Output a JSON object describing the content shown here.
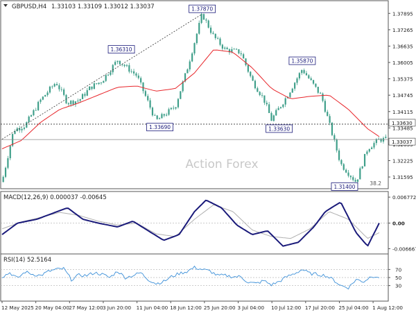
{
  "header": {
    "symbol": "GBPUSD,H4",
    "ohlc": "1.33103 1.33109 1.33012 1.33037"
  },
  "watermark": "Action Forex",
  "colors": {
    "candle": "#3f9f8a",
    "ema": "#e8262b",
    "macd": "#1a1a7a",
    "signal": "#b0b0b0",
    "rsi": "#3b8fd8",
    "label_border": "#1a1a7a",
    "hline": "#555555",
    "grid": "#bbbbbb"
  },
  "chart_data": [
    {
      "type": "candlestick",
      "title": "GBPUSD,H4",
      "ylim": [
        1.3125,
        1.3825
      ],
      "y_ticks": [
        "1.37895",
        "1.37265",
        "1.36635",
        "1.36005",
        "1.35375",
        "1.34745",
        "1.34115",
        "1.33485",
        "1.32855",
        "1.32225",
        "1.31595"
      ],
      "x_ticks": [
        "12 May 2025",
        "20 May 04:00",
        "27 May 12:00",
        "3 Jun 20:00",
        "11 Jun 04:00",
        "18 Jun 12:00",
        "25 Jun 20:00",
        "3 Jul 04:00",
        "10 Jul 12:00",
        "17 Jul 20:00",
        "25 Jul 04:00",
        "1 Aug 12:00"
      ],
      "grid": false,
      "price_path": {
        "x": [
          0,
          3,
          6,
          10,
          14,
          17,
          20,
          23,
          26,
          30,
          35,
          40,
          45,
          48,
          52,
          55,
          58,
          62,
          65,
          68,
          70,
          74,
          78,
          83,
          88,
          92,
          95,
          98
        ],
        "y": [
          1.314,
          1.334,
          1.3358,
          1.3455,
          1.3525,
          1.3445,
          1.3455,
          1.3505,
          1.353,
          1.361,
          1.355,
          1.3375,
          1.343,
          1.357,
          1.3787,
          1.37,
          1.365,
          1.364,
          1.353,
          1.346,
          1.338,
          1.347,
          1.3575,
          1.347,
          1.321,
          1.314,
          1.327,
          1.3304
        ]
      },
      "ema_path": {
        "x": [
          0,
          5,
          10,
          15,
          20,
          25,
          30,
          35,
          40,
          45,
          50,
          55,
          60,
          65,
          70,
          75,
          80,
          85,
          90,
          95,
          98
        ],
        "y": [
          1.3268,
          1.33,
          1.337,
          1.342,
          1.3445,
          1.3475,
          1.3505,
          1.351,
          1.349,
          1.35,
          1.356,
          1.365,
          1.364,
          1.358,
          1.35,
          1.346,
          1.347,
          1.3475,
          1.342,
          1.3345,
          1.3315
        ]
      },
      "trendline": {
        "x": [
          0,
          52
        ],
        "y": [
          1.3305,
          1.3787
        ]
      },
      "levels": [
        {
          "label": "1.33630",
          "value": 1.3363,
          "style": "dashed"
        },
        {
          "label": "1.33037",
          "value": 1.33037,
          "style": "solid"
        }
      ],
      "annotations": [
        {
          "label": "1.36310",
          "x": 31,
          "value": 1.3631,
          "pos": "above"
        },
        {
          "label": "1.33690",
          "x": 41,
          "value": 1.3369,
          "pos": "below"
        },
        {
          "label": "1.37870",
          "x": 52,
          "value": 1.3787,
          "pos": "above"
        },
        {
          "label": "1.33630",
          "x": 72,
          "value": 1.3363,
          "pos": "below"
        },
        {
          "label": "1.35870",
          "x": 78,
          "value": 1.3587,
          "pos": "above"
        },
        {
          "label": "1.31400",
          "x": 89,
          "value": 1.314,
          "pos": "below"
        }
      ],
      "fib_label": "38.2"
    },
    {
      "type": "line",
      "title": "MACD(12,26,9) 0.000037 -0.00645",
      "ylim": [
        -0.0075,
        0.0077
      ],
      "y_ticks": [
        "0.006772",
        "0.00",
        "-0.006667"
      ],
      "series": [
        {
          "x": [
            0,
            4,
            9,
            13,
            17,
            21,
            25,
            30,
            34,
            38,
            42,
            46,
            50,
            53,
            57,
            61,
            65,
            69,
            73,
            77,
            81,
            84,
            88,
            92,
            95,
            98
          ],
          "values": [
            -0.003,
            0.0,
            0.001,
            0.0025,
            0.004,
            0.001,
            0.0,
            -0.001,
            0.0005,
            -0.002,
            -0.0045,
            -0.003,
            0.003,
            0.006,
            0.004,
            -0.0005,
            -0.003,
            -0.002,
            -0.006,
            -0.005,
            -0.001,
            0.003,
            0.0055,
            -0.0025,
            -0.006,
            0.0
          ]
        },
        {
          "x": [
            0,
            5,
            10,
            15,
            20,
            25,
            30,
            35,
            40,
            45,
            50,
            55,
            60,
            65,
            70,
            75,
            80,
            85,
            90,
            95,
            98
          ],
          "values": [
            -0.0015,
            0.0003,
            0.0015,
            0.0028,
            0.002,
            0.0005,
            -0.0005,
            0.0,
            -0.0028,
            -0.0035,
            0.001,
            0.0048,
            0.003,
            -0.0018,
            -0.0035,
            -0.004,
            -0.0015,
            0.003,
            0.001,
            -0.004,
            -0.0025
          ]
        }
      ]
    },
    {
      "type": "line",
      "title": "RSI(14) 52.5164",
      "ylim": [
        0,
        100
      ],
      "y_ticks": [
        "70",
        "50",
        "30"
      ],
      "series": [
        {
          "x": [
            0,
            2,
            4,
            6,
            8,
            10,
            12,
            14,
            16,
            18,
            20,
            22,
            24,
            26,
            28,
            30,
            32,
            34,
            36,
            38,
            40,
            42,
            44,
            46,
            48,
            50,
            52,
            54,
            56,
            58,
            60,
            62,
            64,
            66,
            68,
            70,
            72,
            74,
            76,
            78,
            80,
            82,
            84,
            86,
            88,
            90,
            92,
            94,
            96,
            98
          ],
          "values": [
            52,
            62,
            48,
            64,
            58,
            55,
            65,
            70,
            72,
            45,
            56,
            55,
            62,
            58,
            50,
            66,
            50,
            55,
            62,
            45,
            35,
            40,
            52,
            60,
            65,
            75,
            70,
            66,
            55,
            55,
            52,
            52,
            38,
            35,
            42,
            32,
            40,
            52,
            60,
            70,
            60,
            58,
            55,
            45,
            30,
            25,
            45,
            40,
            54,
            52
          ]
        }
      ]
    }
  ]
}
